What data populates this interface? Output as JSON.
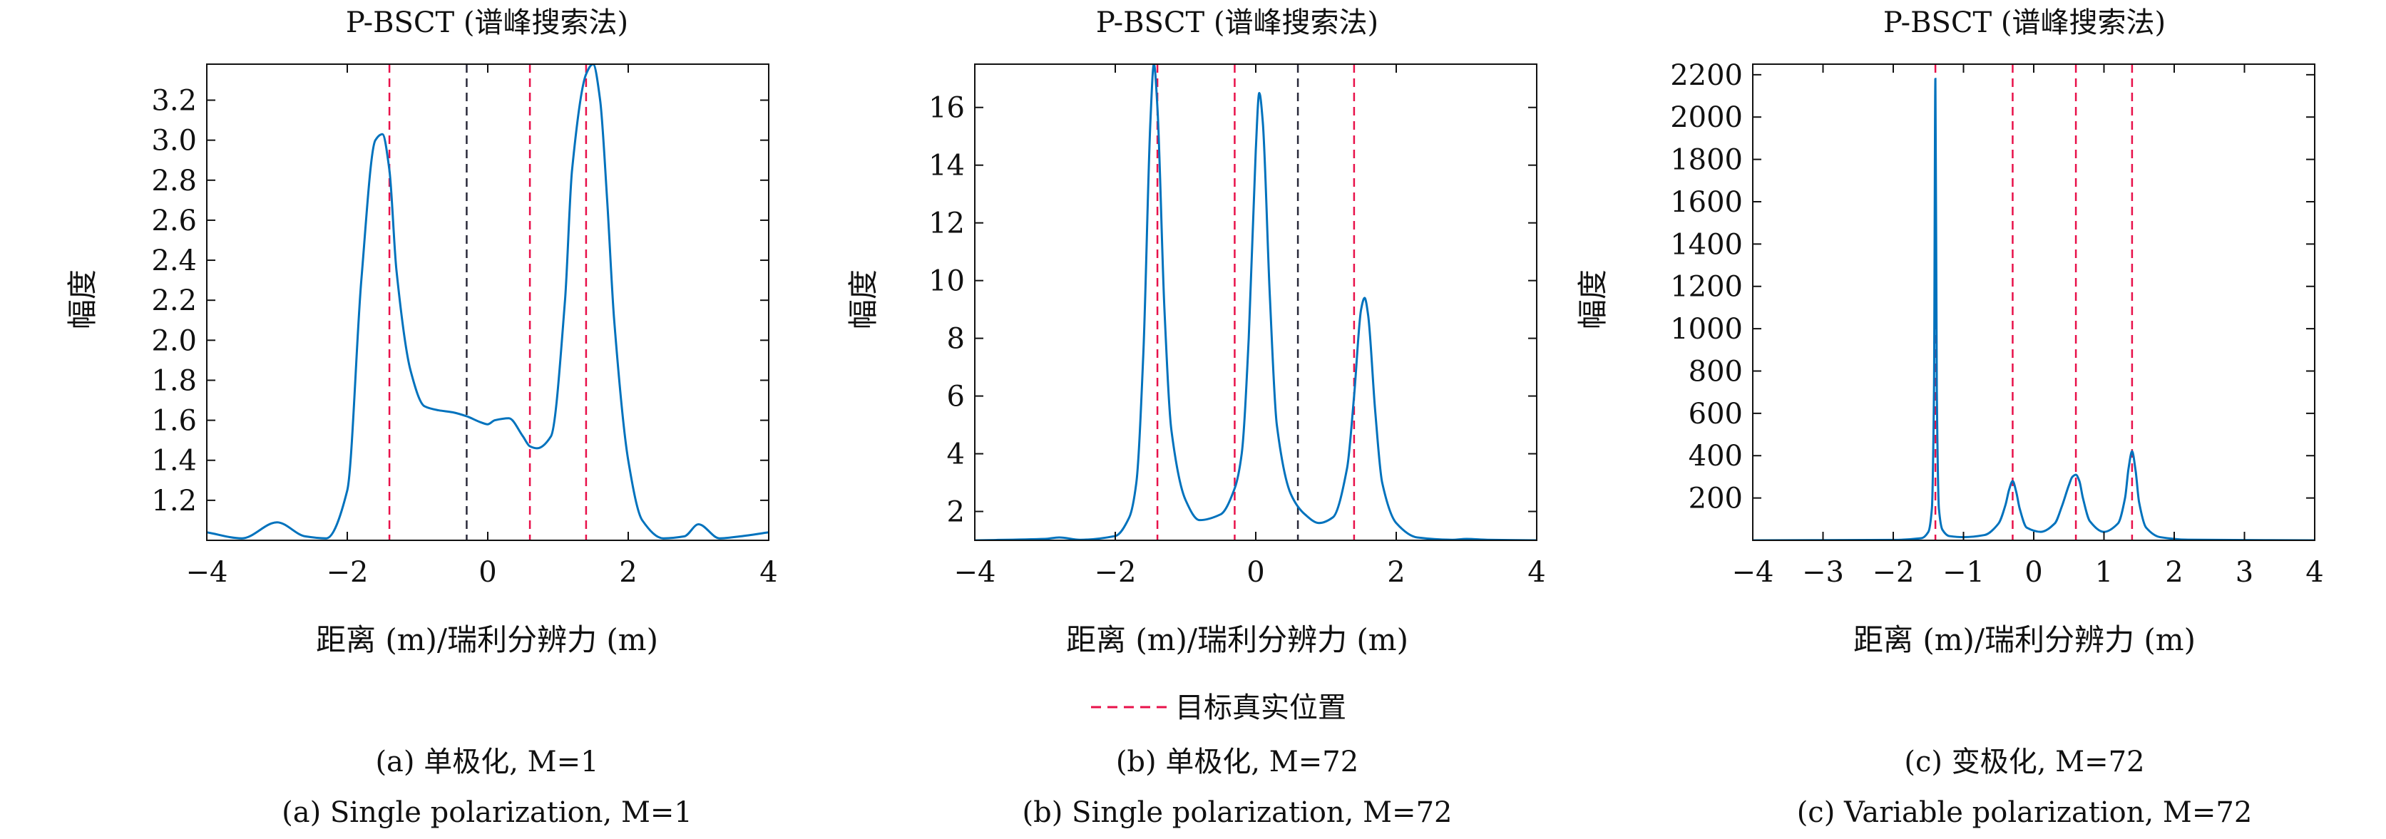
{
  "legend": {
    "label": "目标真实位置"
  },
  "colors": {
    "curve": "#0072bd",
    "true_line": "#e8114a",
    "other_line": "#2a2a3a"
  },
  "chart_data": [
    {
      "type": "line",
      "title": "P-BSCT (谱峰搜索法)",
      "xlabel": "距离 (m)/瑞利分辨力 (m)",
      "ylabel": "幅度",
      "xlim": [
        -4,
        4
      ],
      "ylim": [
        1.0,
        3.38
      ],
      "xticks": [
        -4,
        -2,
        0,
        2,
        4
      ],
      "xtick_labels": [
        "−4",
        "−2",
        "0",
        "2",
        "4"
      ],
      "yticks": [
        1.2,
        1.4,
        1.6,
        1.8,
        2.0,
        2.2,
        2.4,
        2.6,
        2.8,
        3.0,
        3.2
      ],
      "ytick_labels": [
        "1.2",
        "1.4",
        "1.6",
        "1.8",
        "2.0",
        "2.2",
        "2.4",
        "2.6",
        "2.8",
        "3.0",
        "3.2"
      ],
      "caption_cn": "(a) 单极化, M=1",
      "caption_en": "(a) Single polarization, M=1",
      "vlines": [
        {
          "x": -1.4,
          "kind": "true"
        },
        {
          "x": -0.3,
          "kind": "other"
        },
        {
          "x": 0.6,
          "kind": "true"
        },
        {
          "x": 1.4,
          "kind": "true"
        }
      ],
      "baseline": 1.02,
      "series": [
        {
          "x": [
            -4.0,
            -3.5,
            -3.0,
            -2.6,
            -2.3,
            -2.0,
            -1.8,
            -1.6,
            -1.5,
            -1.4,
            -1.3,
            -1.1,
            -0.9,
            -0.7,
            -0.5,
            -0.3,
            -0.1,
            0.0,
            0.1,
            0.3,
            0.5,
            0.6,
            0.7,
            0.9,
            1.1,
            1.2,
            1.4,
            1.5,
            1.6,
            1.7,
            1.8,
            2.0,
            2.2,
            2.5,
            2.8,
            3.0,
            3.3,
            3.6,
            4.0
          ],
          "y": [
            1.04,
            1.01,
            1.09,
            1.02,
            1.01,
            1.25,
            2.3,
            3.0,
            3.03,
            2.85,
            2.35,
            1.85,
            1.67,
            1.65,
            1.64,
            1.62,
            1.59,
            1.58,
            1.6,
            1.61,
            1.52,
            1.47,
            1.46,
            1.52,
            2.2,
            2.85,
            3.33,
            3.38,
            3.2,
            2.7,
            2.1,
            1.4,
            1.1,
            1.01,
            1.02,
            1.08,
            1.01,
            1.02,
            1.04
          ]
        }
      ]
    },
    {
      "type": "line",
      "title": "P-BSCT (谱峰搜索法)",
      "xlabel": "距离 (m)/瑞利分辨力 (m)",
      "ylabel": "幅度",
      "xlim": [
        -4,
        4
      ],
      "ylim": [
        1.0,
        17.5
      ],
      "xticks": [
        -4,
        -2,
        0,
        2,
        4
      ],
      "xtick_labels": [
        "−4",
        "−2",
        "0",
        "2",
        "4"
      ],
      "yticks": [
        2,
        4,
        6,
        8,
        10,
        12,
        14,
        16
      ],
      "ytick_labels": [
        "2",
        "4",
        "6",
        "8",
        "10",
        "12",
        "14",
        "16"
      ],
      "caption_cn": "(b) 单极化, M=72",
      "caption_en": "(b) Single polarization, M=72",
      "vlines": [
        {
          "x": -1.4,
          "kind": "true"
        },
        {
          "x": -0.3,
          "kind": "true"
        },
        {
          "x": 0.6,
          "kind": "other"
        },
        {
          "x": 1.4,
          "kind": "true"
        }
      ],
      "baseline": 1.0,
      "series": [
        {
          "x": [
            -4.0,
            -3.0,
            -2.8,
            -2.5,
            -2.0,
            -1.8,
            -1.7,
            -1.6,
            -1.5,
            -1.45,
            -1.4,
            -1.3,
            -1.2,
            -1.0,
            -0.8,
            -0.5,
            -0.3,
            -0.2,
            -0.1,
            0.0,
            0.05,
            0.1,
            0.2,
            0.3,
            0.5,
            0.7,
            0.9,
            1.1,
            1.3,
            1.4,
            1.5,
            1.55,
            1.6,
            1.7,
            1.8,
            2.0,
            2.3,
            2.8,
            3.0,
            3.3,
            4.0
          ],
          "y": [
            1.0,
            1.05,
            1.1,
            1.02,
            1.15,
            1.8,
            3.0,
            7.5,
            15.5,
            17.5,
            16.0,
            9.0,
            4.8,
            2.4,
            1.7,
            1.9,
            2.8,
            4.0,
            8.0,
            14.5,
            16.5,
            15.5,
            9.5,
            5.0,
            2.6,
            1.9,
            1.6,
            1.8,
            3.5,
            6.0,
            9.0,
            9.4,
            8.8,
            5.5,
            3.0,
            1.6,
            1.1,
            1.02,
            1.05,
            1.02,
            1.0
          ]
        }
      ]
    },
    {
      "type": "line",
      "title": "P-BSCT (谱峰搜索法)",
      "xlabel": "距离 (m)/瑞利分辨力 (m)",
      "ylabel": "幅度",
      "xlim": [
        -4,
        4
      ],
      "ylim": [
        0,
        2250
      ],
      "xticks": [
        -4,
        -3,
        -2,
        -1,
        0,
        1,
        2,
        3,
        4
      ],
      "xtick_labels": [
        "−4",
        "−3",
        "−2",
        "−1",
        "0",
        "1",
        "2",
        "3",
        "4"
      ],
      "yticks": [
        200,
        400,
        600,
        800,
        1000,
        1200,
        1400,
        1600,
        1800,
        2000,
        2200
      ],
      "ytick_labels": [
        "200",
        "400",
        "600",
        "800",
        "1000",
        "1200",
        "1400",
        "1600",
        "1800",
        "2000",
        "2200"
      ],
      "caption_cn": "(c) 变极化, M=72",
      "caption_en": "(c) Variable polarization, M=72",
      "vlines": [
        {
          "x": -1.4,
          "kind": "true"
        },
        {
          "x": -0.3,
          "kind": "true"
        },
        {
          "x": 0.6,
          "kind": "true"
        },
        {
          "x": 1.4,
          "kind": "true"
        }
      ],
      "baseline": 0,
      "series": [
        {
          "x": [
            -4.0,
            -2.0,
            -1.6,
            -1.5,
            -1.45,
            -1.42,
            -1.4,
            -1.38,
            -1.35,
            -1.3,
            -1.2,
            -1.0,
            -0.7,
            -0.5,
            -0.4,
            -0.35,
            -0.3,
            -0.25,
            -0.2,
            -0.1,
            0.1,
            0.3,
            0.4,
            0.5,
            0.55,
            0.6,
            0.65,
            0.7,
            0.8,
            1.0,
            1.2,
            1.3,
            1.35,
            1.4,
            1.45,
            1.5,
            1.6,
            1.8,
            2.2,
            4.0
          ],
          "y": [
            0,
            2,
            10,
            40,
            150,
            700,
            2180,
            700,
            150,
            50,
            20,
            15,
            25,
            80,
            170,
            240,
            280,
            230,
            150,
            60,
            40,
            80,
            160,
            260,
            300,
            310,
            280,
            200,
            90,
            40,
            80,
            200,
            340,
            420,
            330,
            180,
            60,
            15,
            3,
            0
          ]
        }
      ]
    }
  ]
}
